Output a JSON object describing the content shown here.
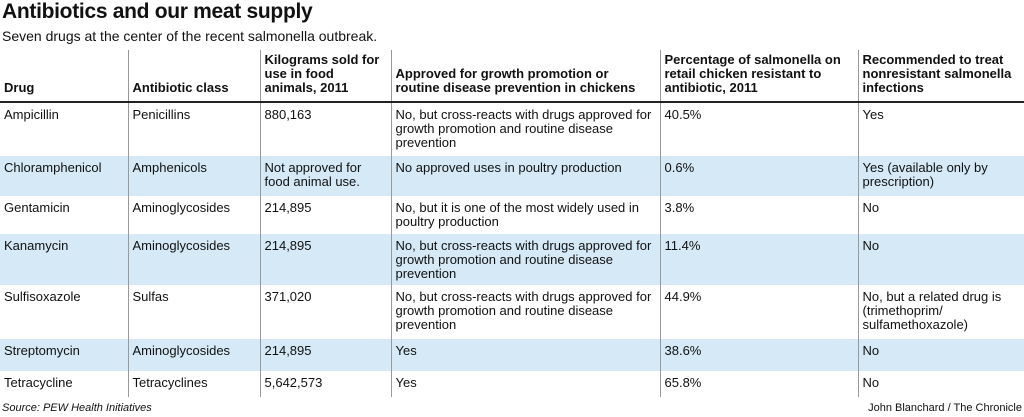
{
  "header": {
    "title": "Antibiotics and our meat supply",
    "subtitle": "Seven drugs at the center of the recent salmonella outbreak."
  },
  "table": {
    "columns": [
      "Drug",
      "Antibiotic class",
      "Kilograms sold for use in food animals, 2011",
      "Approved for growth promotion or routine disease prevention in chickens",
      "Percentage of salmonella on retail chicken resistant to antibiotic, 2011",
      "Recommended to treat nonresistant salmonella infections"
    ],
    "rows": [
      [
        "Ampicillin",
        "Penicillins",
        "880,163",
        "No, but cross-reacts with drugs approved for growth promotion and routine disease prevention",
        "40.5%",
        "Yes"
      ],
      [
        "Chloramphenicol",
        "Amphenicols",
        "Not approved for food animal use.",
        "No approved uses in poultry production",
        "0.6%",
        "Yes (available only by prescription)"
      ],
      [
        "Gentamicin",
        "Aminoglycosides",
        "214,895",
        "No, but it is one of the most widely used in poultry production",
        "3.8%",
        "No"
      ],
      [
        "Kanamycin",
        "Aminoglycosides",
        "214,895",
        "No, but cross-reacts with drugs approved for growth promotion and routine disease prevention",
        "11.4%",
        "No"
      ],
      [
        "Sulfisoxazole",
        "Sulfas",
        "371,020",
        "No, but cross-reacts with drugs approved for growth promotion and routine disease prevention",
        "44.9%",
        "No, but a related drug is (trimethoprim/ sulfamethoxazole)"
      ],
      [
        "Streptomycin",
        "Aminoglycosides",
        "214,895",
        "Yes",
        "38.6%",
        "No"
      ],
      [
        "Tetracycline",
        "Tetracyclines",
        "5,642,573",
        "Yes",
        "65.8%",
        "No"
      ]
    ]
  },
  "footer": {
    "source": "Source: PEW Health Initiatives",
    "credit": "John Blanchard / The Chronicle"
  }
}
